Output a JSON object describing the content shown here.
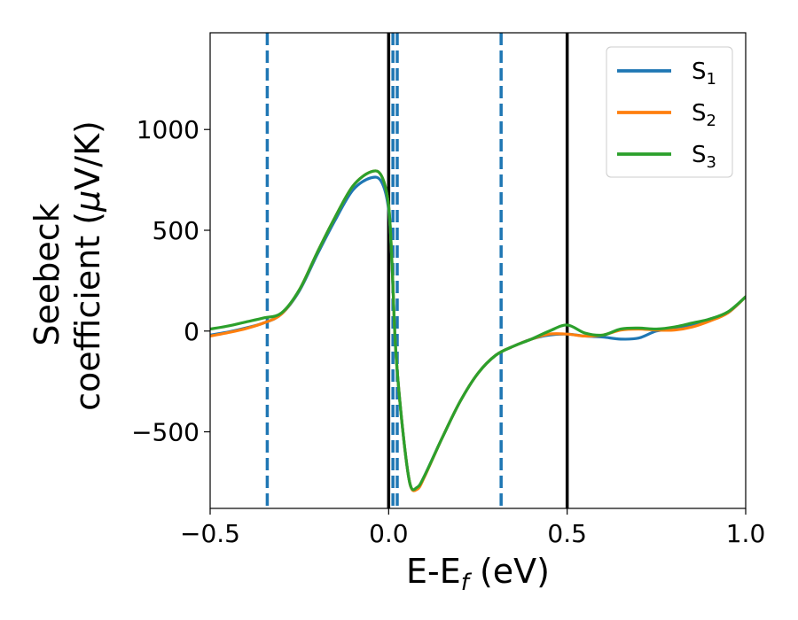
{
  "chart_data": {
    "type": "line",
    "title": "",
    "xlabel": {
      "base": "E-E",
      "sub": "f",
      "unit": " (eV)"
    },
    "ylabel": {
      "line1": "Seebeck",
      "line2": "coefficient  (",
      "mu": "μ",
      "unit": "V/K)"
    },
    "xlim": [
      -0.5,
      1.0
    ],
    "ylim": [
      -880,
      1480
    ],
    "xticks": [
      -0.5,
      0.0,
      0.5,
      1.0
    ],
    "xtick_labels": [
      "−0.5",
      "0.0",
      "0.5",
      "1.0"
    ],
    "yticks": [
      -500,
      0,
      500,
      1000
    ],
    "ytick_labels": [
      "−500",
      "0",
      "500",
      "1000"
    ],
    "grid": false,
    "legend_position": "top-right",
    "vlines_solid": [
      0.0,
      0.5
    ],
    "vlines_dashed": [
      -0.34,
      0.012,
      0.024,
      0.315
    ],
    "colors": {
      "S1": "#1f77b4",
      "S2": "#ff7f0e",
      "S3": "#2ca02c",
      "solid_vline": "#000000",
      "dashed_vline": "#1f77b4"
    },
    "series": [
      {
        "name": "S1",
        "label_base": "S",
        "label_sub": "1",
        "color": "#1f77b4",
        "x": [
          -0.5,
          -0.45,
          -0.4,
          -0.35,
          -0.3,
          -0.25,
          -0.2,
          -0.15,
          -0.1,
          -0.05,
          -0.02,
          0.0,
          0.01,
          0.02,
          0.04,
          0.06,
          0.08,
          0.1,
          0.15,
          0.2,
          0.25,
          0.3,
          0.35,
          0.4,
          0.45,
          0.5,
          0.55,
          0.6,
          0.65,
          0.7,
          0.75,
          0.8,
          0.85,
          0.9,
          0.95,
          1.0
        ],
        "y": [
          -20,
          -5,
          15,
          40,
          85,
          200,
          380,
          550,
          700,
          760,
          740,
          600,
          300,
          -100,
          -500,
          -760,
          -780,
          -720,
          -530,
          -350,
          -210,
          -120,
          -75,
          -40,
          -20,
          -15,
          -25,
          -30,
          -40,
          -35,
          0,
          10,
          30,
          60,
          90,
          170
        ]
      },
      {
        "name": "S2",
        "label_base": "S",
        "label_sub": "2",
        "color": "#ff7f0e",
        "x": [
          -0.5,
          -0.45,
          -0.4,
          -0.35,
          -0.3,
          -0.25,
          -0.2,
          -0.15,
          -0.1,
          -0.05,
          -0.02,
          0.0,
          0.01,
          0.02,
          0.04,
          0.06,
          0.08,
          0.1,
          0.15,
          0.2,
          0.25,
          0.3,
          0.35,
          0.4,
          0.45,
          0.5,
          0.55,
          0.6,
          0.65,
          0.7,
          0.75,
          0.8,
          0.85,
          0.9,
          0.95,
          1.0
        ],
        "y": [
          -25,
          -8,
          12,
          40,
          85,
          205,
          390,
          565,
          720,
          790,
          770,
          620,
          310,
          -100,
          -500,
          -760,
          -785,
          -725,
          -530,
          -350,
          -210,
          -120,
          -75,
          -40,
          -15,
          -15,
          -25,
          -20,
          5,
          10,
          5,
          5,
          20,
          50,
          90,
          170
        ]
      },
      {
        "name": "S3",
        "label_base": "S",
        "label_sub": "3",
        "color": "#2ca02c",
        "x": [
          -0.5,
          -0.45,
          -0.4,
          -0.35,
          -0.3,
          -0.25,
          -0.2,
          -0.15,
          -0.1,
          -0.05,
          -0.02,
          0.0,
          0.01,
          0.02,
          0.04,
          0.06,
          0.08,
          0.1,
          0.15,
          0.2,
          0.25,
          0.3,
          0.35,
          0.4,
          0.45,
          0.5,
          0.55,
          0.6,
          0.65,
          0.7,
          0.75,
          0.8,
          0.85,
          0.9,
          0.95,
          1.0
        ],
        "y": [
          10,
          25,
          45,
          65,
          90,
          205,
          390,
          565,
          720,
          790,
          770,
          620,
          310,
          -100,
          -500,
          -760,
          -775,
          -720,
          -530,
          -350,
          -210,
          -120,
          -75,
          -40,
          0,
          30,
          -10,
          -20,
          10,
          15,
          10,
          20,
          40,
          60,
          95,
          170
        ]
      }
    ]
  }
}
